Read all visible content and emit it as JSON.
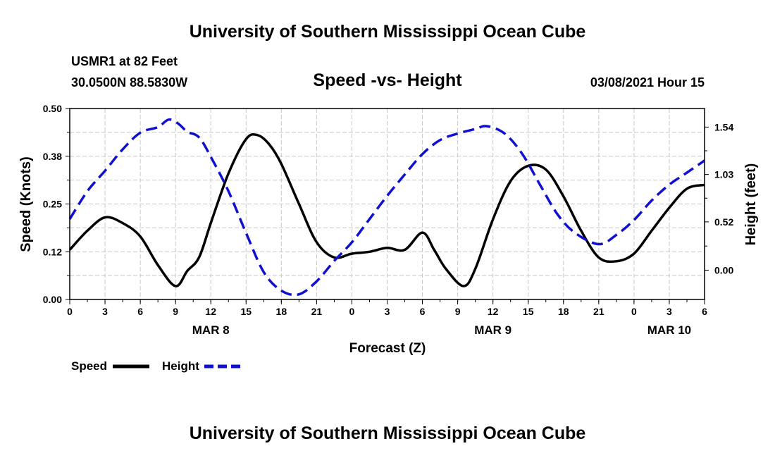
{
  "header": {
    "title": "University of Southern Mississippi Ocean Cube",
    "station": "USMR1 at 82 Feet",
    "coords": "30.0500N 88.5830W",
    "date": "03/08/2021 Hour 15"
  },
  "footer": {
    "title": "University of Southern Mississippi Ocean Cube"
  },
  "legend": {
    "speed_label": "Speed",
    "height_label": "Height",
    "speed_color": "#000000",
    "height_color": "#1010d0"
  },
  "chart_data": {
    "type": "line",
    "title": "Speed -vs- Height",
    "xlabel": "Forecast (Z)",
    "ylabel_left": "Speed (Knots)",
    "ylabel_right": "Height (feet)",
    "x_ticks": [
      0,
      3,
      6,
      9,
      12,
      15,
      18,
      21,
      24,
      27,
      30,
      33,
      36,
      39,
      42,
      45,
      48,
      51,
      54
    ],
    "x_tick_labels": [
      "0",
      "3",
      "6",
      "9",
      "12",
      "15",
      "18",
      "21",
      "0",
      "3",
      "6",
      "9",
      "12",
      "15",
      "18",
      "21",
      "0",
      "3",
      "6"
    ],
    "xlim": [
      0,
      54
    ],
    "day_labels": [
      {
        "x": 12,
        "label": "MAR 8"
      },
      {
        "x": 36,
        "label": "MAR 9"
      },
      {
        "x": 51,
        "label": "MAR 10"
      }
    ],
    "y_left_ticks": [
      0.0,
      0.125,
      0.25,
      0.375,
      0.5
    ],
    "y_left_tick_labels": [
      "0.00",
      "0.12",
      "0.25",
      "0.38",
      "0.50"
    ],
    "ylim_left": [
      0,
      0.5
    ],
    "y_right_ticks": [
      0.0,
      0.52,
      1.03,
      1.54
    ],
    "y_right_tick_labels": [
      "0.00",
      "0.52",
      "1.03",
      "1.54"
    ],
    "ylim_right": [
      -0.315,
      1.74
    ],
    "grid": true,
    "series": [
      {
        "name": "Speed",
        "axis": "left",
        "color": "#000000",
        "dash": "solid",
        "x": [
          0,
          1.5,
          3,
          4.5,
          6,
          7.5,
          9,
          10,
          11,
          12,
          13.5,
          15,
          16,
          17,
          18,
          19.5,
          21,
          22.5,
          24,
          25.5,
          27,
          28.5,
          30,
          31,
          32,
          33.5,
          34.5,
          36,
          37.5,
          39,
          40.5,
          42,
          43.5,
          45,
          46.5,
          48,
          49.5,
          51,
          52.5,
          54
        ],
        "y": [
          0.13,
          0.18,
          0.215,
          0.2,
          0.165,
          0.09,
          0.035,
          0.075,
          0.11,
          0.2,
          0.33,
          0.42,
          0.43,
          0.405,
          0.355,
          0.25,
          0.15,
          0.11,
          0.12,
          0.125,
          0.135,
          0.13,
          0.175,
          0.13,
          0.08,
          0.035,
          0.08,
          0.21,
          0.31,
          0.35,
          0.34,
          0.27,
          0.18,
          0.11,
          0.1,
          0.12,
          0.18,
          0.24,
          0.29,
          0.3
        ]
      },
      {
        "name": "Height",
        "axis": "right",
        "color": "#1010d0",
        "dash": "dashed",
        "x": [
          0,
          1.5,
          3,
          4.5,
          6,
          7.5,
          8.4,
          9.2,
          10,
          11,
          12,
          13.5,
          15,
          16.5,
          18,
          19.5,
          21,
          22.5,
          24,
          25.5,
          27,
          28.5,
          30,
          31.5,
          33,
          34.5,
          35.5,
          37,
          38.5,
          40,
          41.5,
          43,
          45,
          46.5,
          48,
          49.5,
          51,
          52.5,
          54
        ],
        "y": [
          0.55,
          0.85,
          1.07,
          1.3,
          1.48,
          1.54,
          1.62,
          1.58,
          1.49,
          1.43,
          1.22,
          0.85,
          0.4,
          -0.02,
          -0.22,
          -0.26,
          -0.12,
          0.1,
          0.3,
          0.55,
          0.8,
          1.03,
          1.25,
          1.4,
          1.47,
          1.52,
          1.55,
          1.47,
          1.25,
          0.92,
          0.6,
          0.4,
          0.28,
          0.38,
          0.54,
          0.75,
          0.92,
          1.05,
          1.18
        ]
      }
    ]
  }
}
